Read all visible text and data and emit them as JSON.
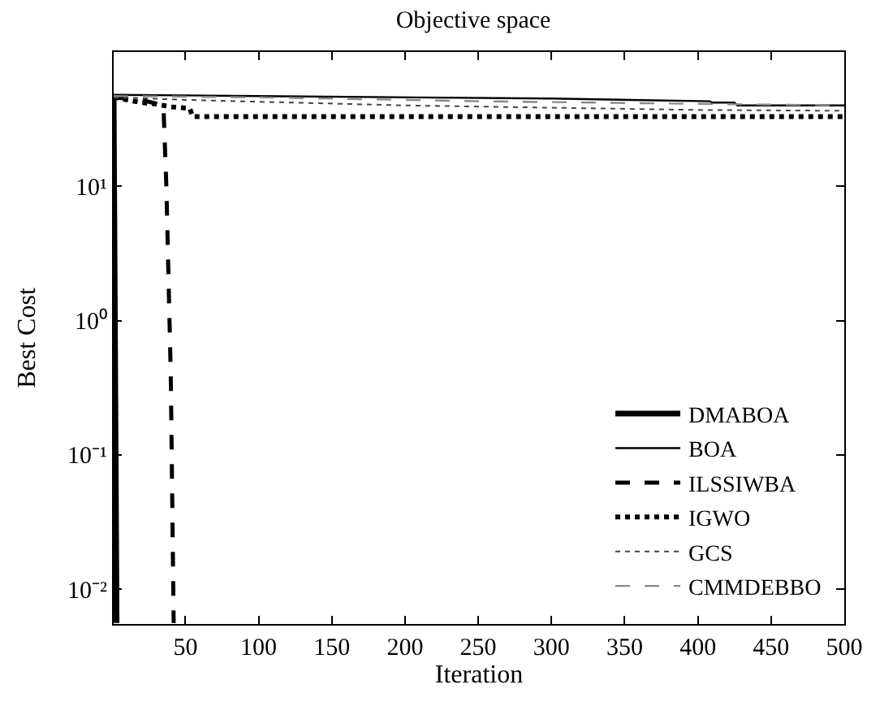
{
  "chart_data": {
    "type": "line",
    "title": "Objective space",
    "xlabel": "Iteration",
    "ylabel": "Best Cost",
    "log": "y",
    "xlim": [
      1,
      500
    ],
    "xticks": [
      50,
      100,
      150,
      200,
      250,
      300,
      350,
      400,
      450,
      500
    ],
    "ylim": [
      0.0055,
      100
    ],
    "yticks": [
      {
        "value": 0.01,
        "label": "10⁻²"
      },
      {
        "value": 0.1,
        "label": "10⁻¹"
      },
      {
        "value": 1,
        "label": "10⁰"
      },
      {
        "value": 10,
        "label": "10¹"
      }
    ],
    "grid": false,
    "legend": "bottom right",
    "marker": "none",
    "series": [
      {
        "name": "DMABOA",
        "color": "#000000",
        "line_style": "solid",
        "x": [
          1,
          3
        ],
        "values": [
          46,
          0.0056
        ]
      },
      {
        "name": "BOA",
        "color": "#000000",
        "line_style": "solid",
        "x": [
          1,
          100,
          300,
          408,
          410,
          425,
          427,
          500
        ],
        "values": [
          48,
          47,
          45,
          43,
          42,
          42,
          40,
          40
        ]
      },
      {
        "name": "ILSSIWBA",
        "color": "#000000",
        "line_style": "dashed",
        "x": [
          1,
          20,
          35,
          37,
          40,
          42
        ],
        "values": [
          46,
          44,
          40,
          10,
          0.4,
          0.0056
        ]
      },
      {
        "name": "IGWO",
        "color": "#000000",
        "line_style": "dotted",
        "x": [
          1,
          10,
          20,
          30,
          40,
          53,
          55,
          500
        ],
        "values": [
          46,
          44,
          42,
          41,
          39,
          38,
          33,
          33
        ]
      },
      {
        "name": "GCS",
        "color": "#444444",
        "line_style": "dotted",
        "x": [
          1,
          50,
          200,
          400,
          500
        ],
        "values": [
          46,
          44,
          40,
          37,
          36.5
        ]
      },
      {
        "name": "CMMDEBBO",
        "color": "#888888",
        "line_style": "dashed",
        "x": [
          1,
          100,
          250,
          410,
          500
        ],
        "values": [
          47,
          46,
          43,
          41,
          40
        ]
      }
    ]
  }
}
